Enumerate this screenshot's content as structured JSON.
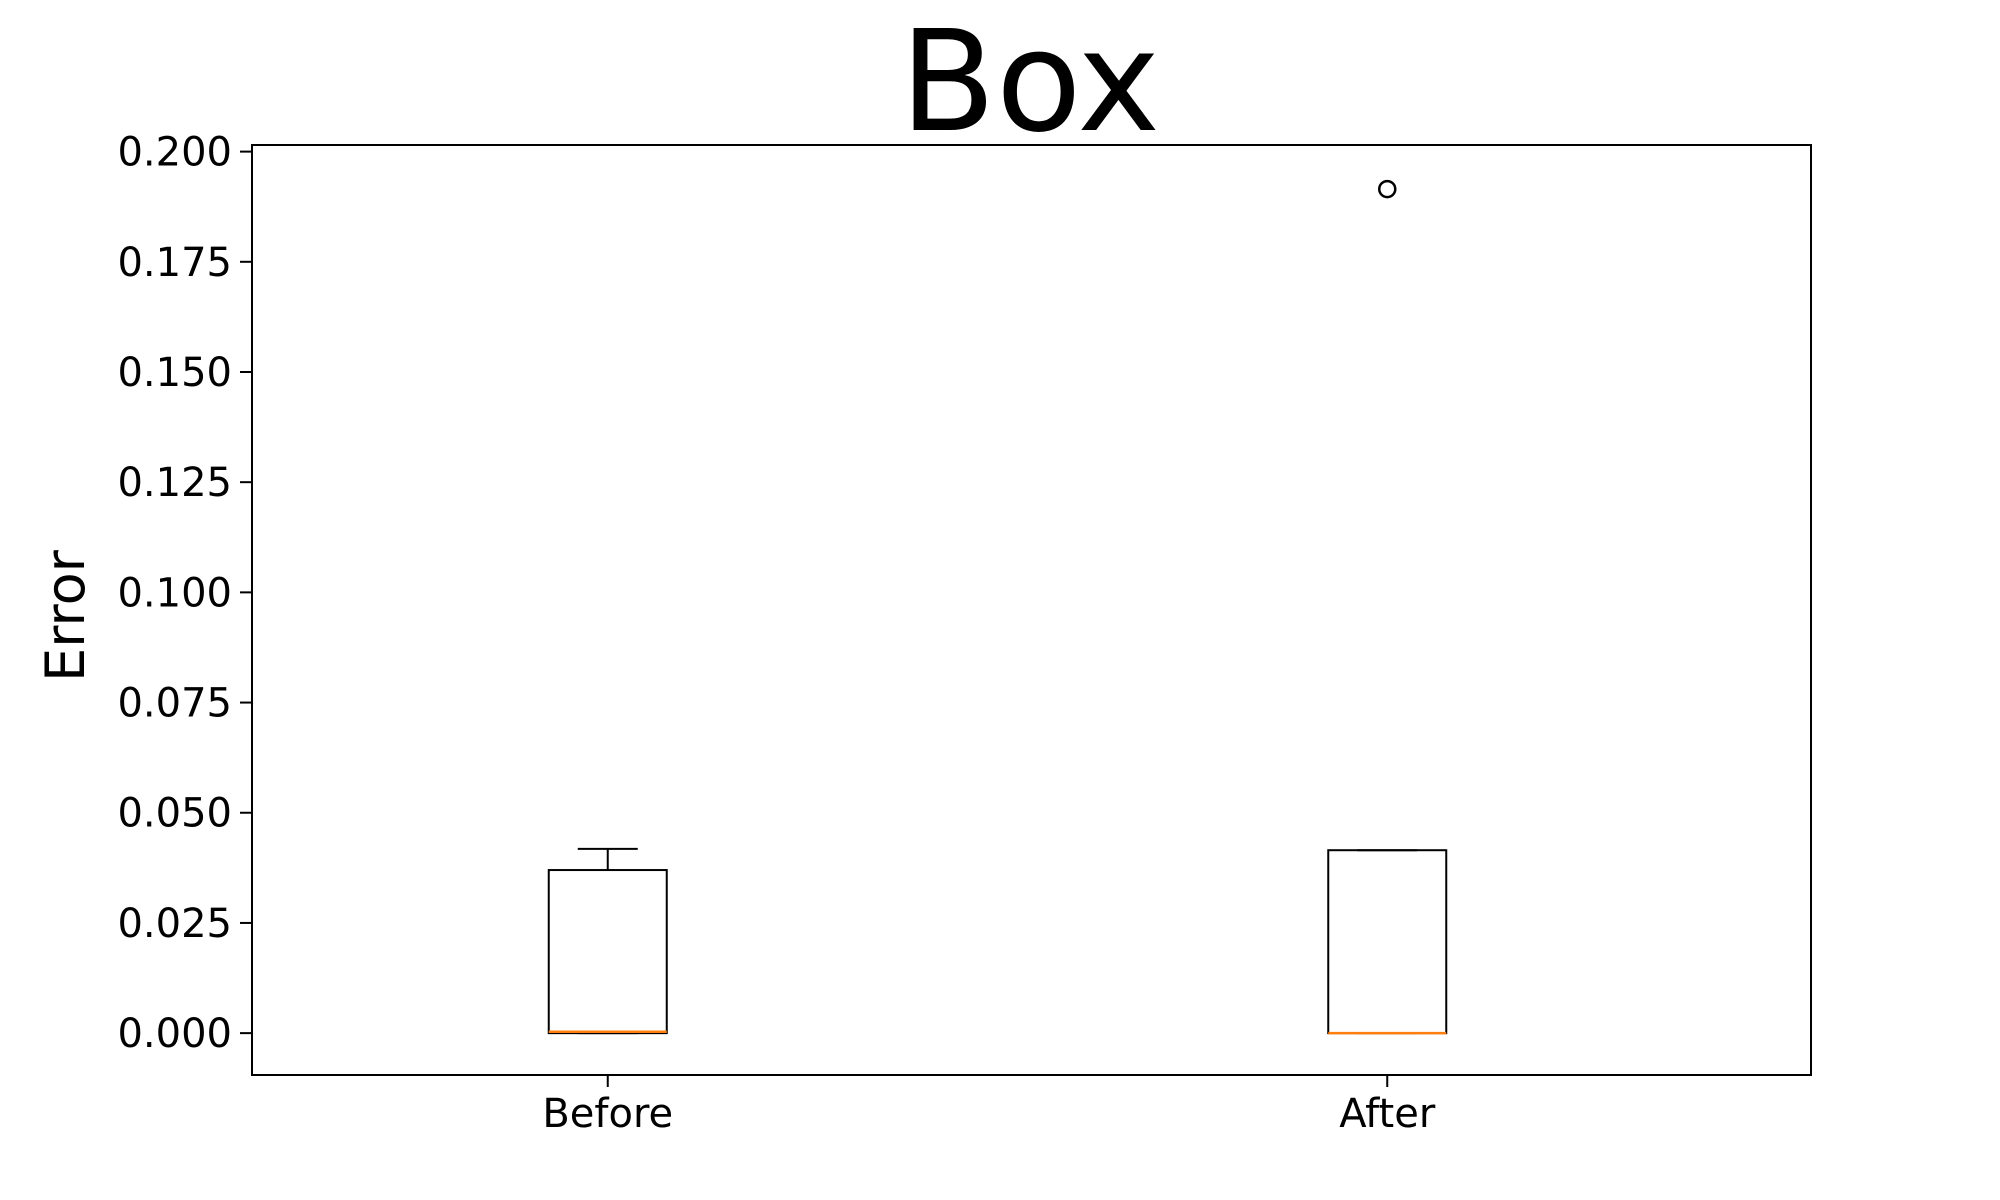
{
  "chart_data": {
    "type": "box",
    "title": "Box",
    "xlabel": "",
    "ylabel": "Error",
    "ylim": [
      -0.0095,
      0.2015
    ],
    "yticks": [
      "0.000",
      "0.025",
      "0.050",
      "0.075",
      "0.100",
      "0.125",
      "0.150",
      "0.175",
      "0.200"
    ],
    "categories": [
      "Before",
      "After"
    ],
    "grid": false,
    "colors": {
      "box": "#000000",
      "median": "#ff7f0e",
      "flier": "#000000"
    },
    "boxes": [
      {
        "label": "Before",
        "whisker_low": 0.0,
        "q1": 0.0,
        "median": 0.0003,
        "q3": 0.037,
        "whisker_high": 0.0418,
        "fliers": []
      },
      {
        "label": "After",
        "whisker_low": 0.0,
        "q1": 0.0,
        "median": 0.0,
        "q3": 0.0415,
        "whisker_high": 0.0415,
        "fliers": [
          0.1915
        ]
      }
    ]
  }
}
